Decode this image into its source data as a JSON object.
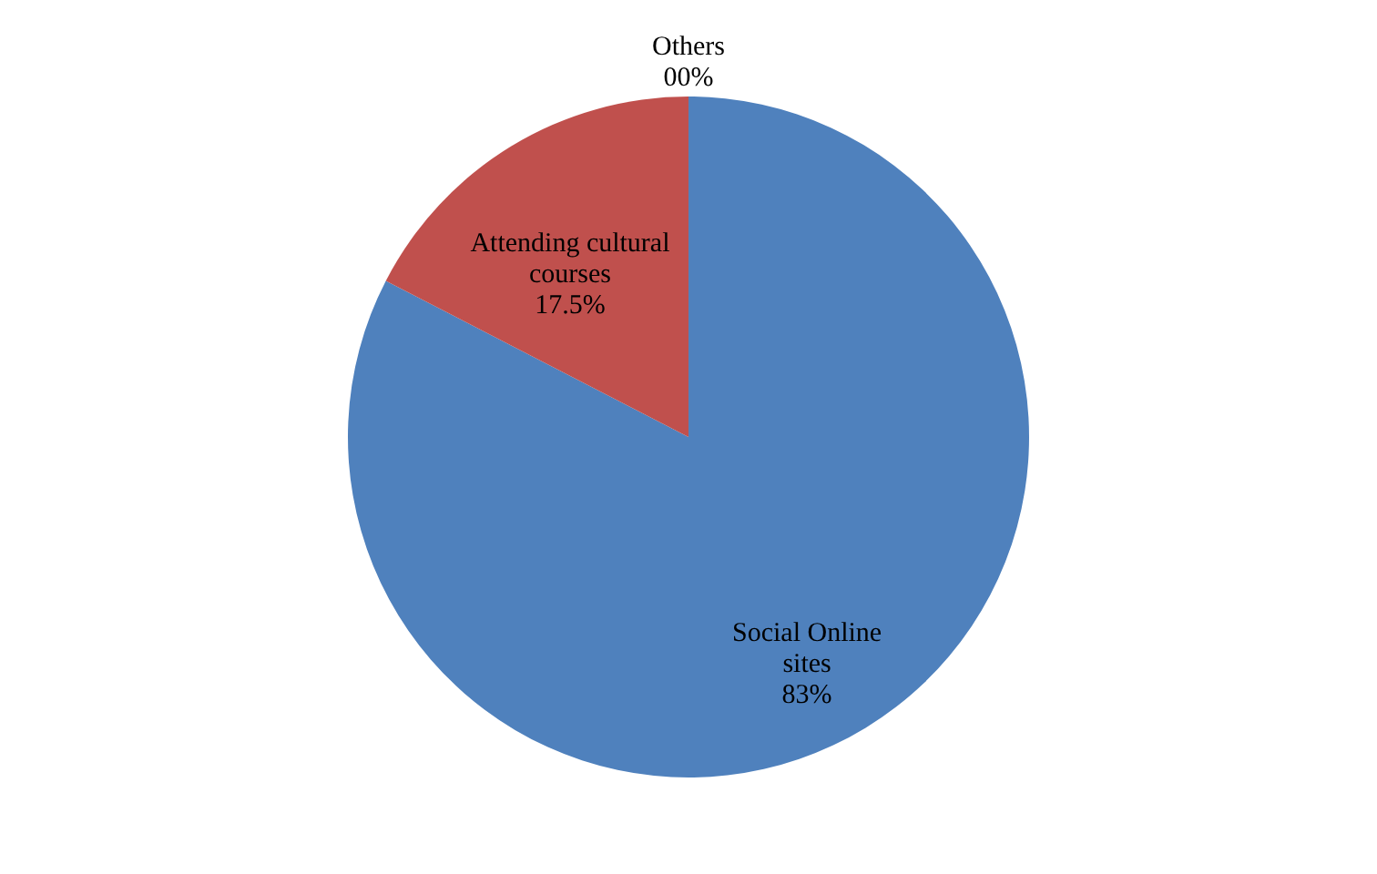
{
  "chart_data": {
    "type": "pie",
    "categories": [
      "Others",
      "Social Online sites",
      "Attending cultural courses"
    ],
    "values": [
      0,
      83,
      17.5
    ],
    "colors": [
      "#9bbb59",
      "#4f81bd",
      "#c0504d"
    ],
    "value_labels": [
      "00%",
      "83%",
      "17.5%"
    ],
    "legend": false
  }
}
